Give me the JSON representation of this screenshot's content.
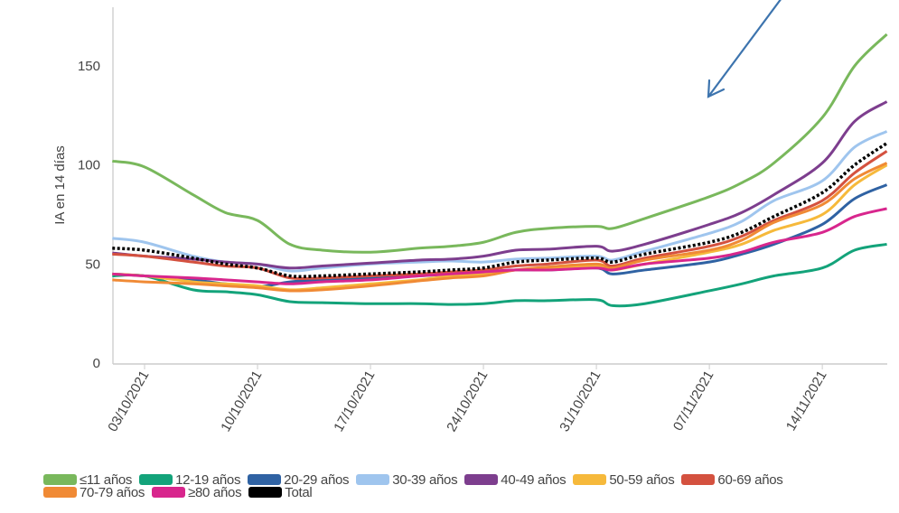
{
  "chart_data": {
    "type": "line",
    "title": "",
    "xlabel": "",
    "ylabel": "IA en 14 días",
    "ylim": [
      0,
      175
    ],
    "yticks": [
      0,
      50,
      100,
      150
    ],
    "xticks": [
      "03/10/2021",
      "10/10/2021",
      "17/10/2021",
      "24/10/2021",
      "31/10/2021",
      "07/11/2021",
      "14/11/2021"
    ],
    "grid": false,
    "legend_position": "bottom",
    "x": [
      "01/10/2021",
      "03/10/2021",
      "06/10/2021",
      "08/10/2021",
      "10/10/2021",
      "12/10/2021",
      "14/10/2021",
      "17/10/2021",
      "20/10/2021",
      "22/10/2021",
      "24/10/2021",
      "26/10/2021",
      "28/10/2021",
      "31/10/2021",
      "01/11/2021",
      "03/11/2021",
      "07/11/2021",
      "09/11/2021",
      "11/11/2021",
      "14/11/2021",
      "16/11/2021",
      "18/11/2021"
    ],
    "series": [
      {
        "name": "≤11 años",
        "color": "#79b85c",
        "values": [
          102,
          99,
          85,
          76,
          72,
          60,
          57,
          56,
          58,
          59,
          61,
          66,
          68,
          69,
          68,
          73,
          84,
          91,
          101,
          124,
          150,
          166
        ]
      },
      {
        "name": "12-19 años",
        "color": "#13a37a",
        "values": [
          44,
          44,
          37,
          36,
          34.5,
          31,
          30.5,
          30,
          30,
          29.6,
          30,
          31.5,
          31.5,
          32,
          29,
          30,
          36.5,
          40,
          44,
          48,
          57,
          60
        ]
      },
      {
        "name": "20-29 años",
        "color": "#2f62a3",
        "values": [
          45,
          44,
          42,
          40,
          38.5,
          41,
          42,
          43,
          44,
          45,
          46,
          47,
          47,
          48,
          45,
          47,
          51,
          55,
          60,
          70,
          83,
          90
        ]
      },
      {
        "name": "30-39 años",
        "color": "#9fc5ee",
        "values": [
          63,
          61,
          54,
          51,
          50,
          46.5,
          48,
          50,
          51,
          51.5,
          51,
          52.5,
          53,
          54,
          52,
          56.5,
          65.5,
          71.5,
          82,
          92,
          109,
          117
        ]
      },
      {
        "name": "40-49 años",
        "color": "#7d3e8e",
        "values": [
          55.6,
          54,
          52.5,
          51,
          50,
          48,
          49,
          50.5,
          52,
          52.5,
          54,
          57,
          57.5,
          59,
          56.5,
          60,
          70,
          76,
          85,
          101,
          122,
          132
        ]
      },
      {
        "name": "50-59 años",
        "color": "#f6b93b",
        "values": [
          45,
          44,
          41,
          40,
          39,
          37,
          38,
          40,
          42,
          44,
          45,
          47,
          48,
          49,
          47,
          50,
          56,
          60,
          67,
          75,
          90,
          100
        ]
      },
      {
        "name": "60-69 años",
        "color": "#d4513f",
        "values": [
          55,
          54,
          51,
          49,
          48,
          43,
          43,
          44,
          45,
          46,
          47,
          49,
          50,
          52,
          49,
          53,
          59,
          64,
          72,
          82,
          96,
          107
        ]
      },
      {
        "name": "70-79 años",
        "color": "#f08a35",
        "values": [
          42,
          41,
          40,
          39,
          38,
          36.5,
          37,
          39,
          41.5,
          43,
          44,
          47,
          48.5,
          50,
          48,
          52,
          57,
          62,
          71,
          80,
          93,
          101
        ]
      },
      {
        "name": "≥80 años",
        "color": "#d8268d",
        "values": [
          45,
          44,
          43,
          42,
          41,
          40,
          41,
          42,
          44,
          45,
          46,
          47,
          47,
          48,
          47,
          50,
          53,
          56,
          61,
          66,
          74,
          78
        ]
      },
      {
        "name": "Total",
        "color": "#000000",
        "dashed": true,
        "values": [
          58,
          57,
          53,
          50,
          48,
          44,
          44,
          45,
          46,
          47,
          48,
          51,
          52,
          53,
          51,
          55,
          61,
          66,
          74,
          86,
          100,
          111
        ]
      }
    ]
  }
}
